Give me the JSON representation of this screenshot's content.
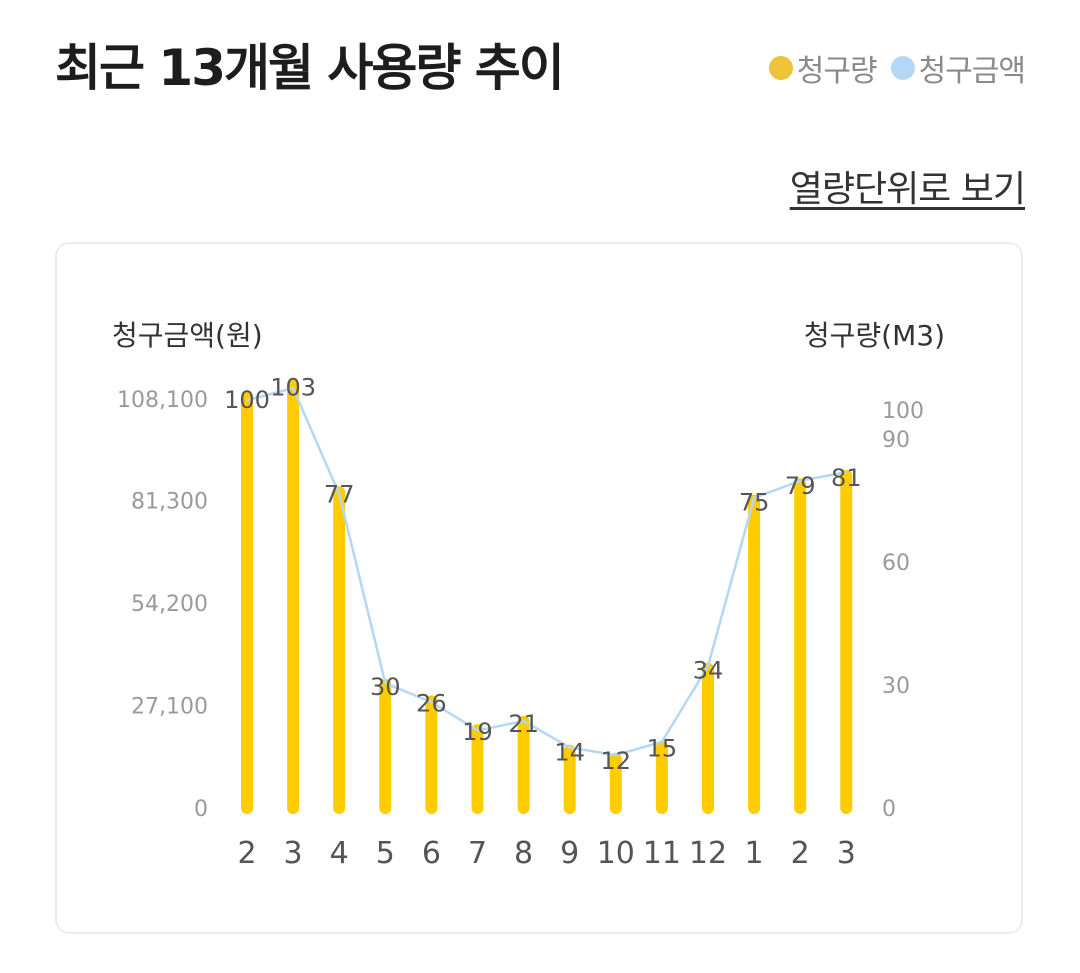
{
  "header": {
    "title": "최근 13개월 사용량 추이",
    "link_label": "열량단위로 보기"
  },
  "legend": [
    {
      "label": "청구량",
      "color": "#EEC239"
    },
    {
      "label": "청구금액",
      "color": "#B3D7F5"
    }
  ],
  "chart_data": {
    "type": "bar",
    "categories": [
      "2",
      "3",
      "4",
      "5",
      "6",
      "7",
      "8",
      "9",
      "10",
      "11",
      "12",
      "1",
      "2",
      "3"
    ],
    "left_axis": {
      "title": "청구금액(원)",
      "ticks": [
        "0",
        "27,100",
        "54,200",
        "81,300",
        "108,100"
      ],
      "ylim": [
        0,
        108400
      ]
    },
    "right_axis": {
      "title": "청구량(M3)",
      "ticks": [
        "0",
        "30",
        "60",
        "90",
        "100"
      ],
      "ylim": [
        0,
        100
      ]
    },
    "series": [
      {
        "name": "청구량",
        "type": "bar",
        "axis": "right",
        "color": "#FFCC00",
        "values": [
          100,
          103,
          77,
          30,
          26,
          19,
          21,
          14,
          12,
          15,
          34,
          75,
          79,
          81
        ]
      },
      {
        "name": "청구금액",
        "type": "line",
        "axis": "left",
        "color": "#B3D7F5",
        "values": [
          107800,
          111000,
          83000,
          33000,
          28000,
          20500,
          23000,
          16000,
          14000,
          17500,
          37500,
          82000,
          86500,
          88800
        ]
      }
    ]
  }
}
